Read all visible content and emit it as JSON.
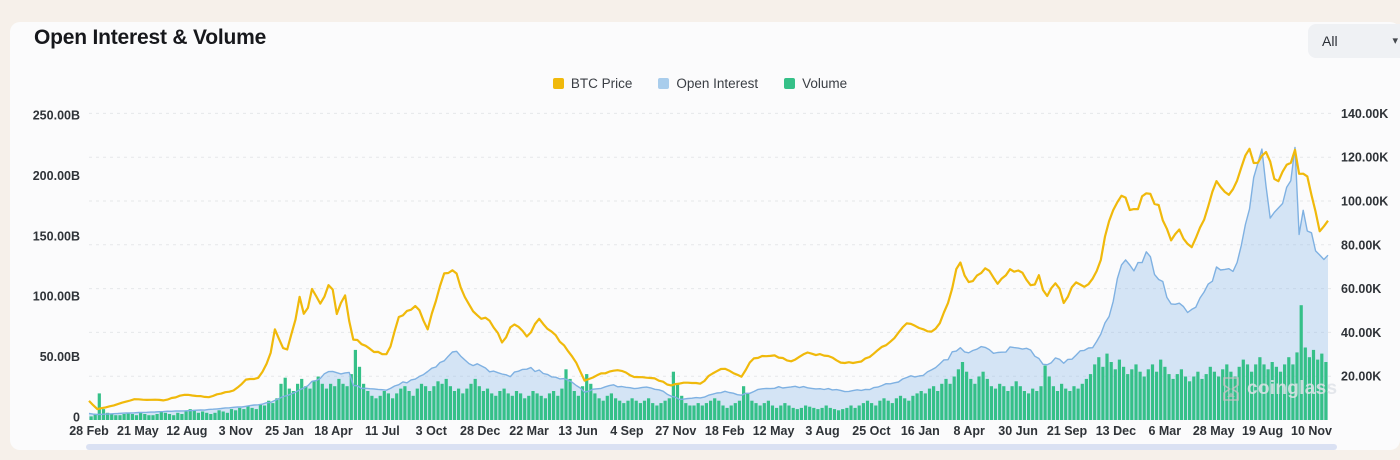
{
  "header": {
    "title": "Open Interest & Volume",
    "range_selector": {
      "value": "All"
    }
  },
  "watermark": {
    "text": "coinglass"
  },
  "chart_data": {
    "type": "mixed",
    "title": "Open Interest & Volume",
    "legend_position": "top-center",
    "grid": "horizontal-dashed",
    "time_span_days": 2100,
    "sample_step_days": 7,
    "x_axis": {
      "tick_labels": [
        "28 Feb",
        "21 May",
        "12 Aug",
        "3 Nov",
        "25 Jan",
        "18 Apr",
        "11 Jul",
        "3 Oct",
        "28 Dec",
        "22 Mar",
        "13 Jun",
        "4 Sep",
        "27 Nov",
        "18 Feb",
        "12 May",
        "3 Aug",
        "25 Oct",
        "16 Jan",
        "8 Apr",
        "30 Jun",
        "21 Sep",
        "13 Dec",
        "6 Mar",
        "28 May",
        "19 Aug",
        "10 Nov"
      ],
      "tick_spacing_days": 83
    },
    "left_axis": {
      "unit": "B",
      "tick_labels": [
        "250.00B",
        "200.00B",
        "150.00B",
        "100.00B",
        "50.00B",
        "0"
      ],
      "tick_values": [
        250,
        200,
        150,
        100,
        50,
        0
      ],
      "range": [
        0,
        260
      ]
    },
    "right_axis": {
      "unit": "K",
      "tick_labels": [
        "140.00K",
        "120.00K",
        "100.00K",
        "80.00K",
        "60.00K",
        "40.00K",
        "20.00K"
      ],
      "tick_values": [
        140,
        120,
        100,
        80,
        60,
        40,
        20
      ],
      "range": [
        0,
        145
      ]
    },
    "series": [
      {
        "name": "BTC Price",
        "type": "line",
        "axis": "right",
        "unit": "K USD",
        "color": "#F0B90B",
        "stroke": "#F0B90B",
        "roughness": 0.018,
        "keypoints": [
          [
            0,
            8.7
          ],
          [
            14,
            4.9
          ],
          [
            45,
            6.9
          ],
          [
            75,
            9.4
          ],
          [
            130,
            9.1
          ],
          [
            163,
            11.8
          ],
          [
            200,
            10.4
          ],
          [
            245,
            13.5
          ],
          [
            266,
            18.4
          ],
          [
            288,
            19.2
          ],
          [
            307,
            29
          ],
          [
            315,
            40.9
          ],
          [
            334,
            30.4
          ],
          [
            352,
            48.6
          ],
          [
            358,
            57.4
          ],
          [
            366,
            45.1
          ],
          [
            380,
            61.2
          ],
          [
            392,
            52.3
          ],
          [
            411,
            63.6
          ],
          [
            420,
            49.1
          ],
          [
            433,
            58.9
          ],
          [
            446,
            36.7
          ],
          [
            460,
            35.6
          ],
          [
            478,
            31.6
          ],
          [
            508,
            29.8
          ],
          [
            522,
            45.6
          ],
          [
            540,
            49.3
          ],
          [
            557,
            52.7
          ],
          [
            573,
            40.7
          ],
          [
            600,
            66
          ],
          [
            621,
            67.5
          ],
          [
            635,
            56.9
          ],
          [
            660,
            46.7
          ],
          [
            673,
            46.2
          ],
          [
            690,
            41.8
          ],
          [
            700,
            35
          ],
          [
            720,
            44.4
          ],
          [
            745,
            37.7
          ],
          [
            760,
            46.8
          ],
          [
            790,
            38.5
          ],
          [
            820,
            29
          ],
          [
            841,
            17.8
          ],
          [
            870,
            21.2
          ],
          [
            900,
            23.3
          ],
          [
            920,
            19.8
          ],
          [
            950,
            19.6
          ],
          [
            985,
            15.9
          ],
          [
            1010,
            17.2
          ],
          [
            1038,
            16.6
          ],
          [
            1055,
            21.1
          ],
          [
            1075,
            23.7
          ],
          [
            1106,
            19.9
          ],
          [
            1125,
            28.3
          ],
          [
            1160,
            29.9
          ],
          [
            1190,
            26.8
          ],
          [
            1219,
            30.6
          ],
          [
            1250,
            29.2
          ],
          [
            1280,
            25.9
          ],
          [
            1310,
            26.7
          ],
          [
            1330,
            29.9
          ],
          [
            1350,
            34.5
          ],
          [
            1365,
            37.8
          ],
          [
            1385,
            43.8
          ],
          [
            1403,
            42.3
          ],
          [
            1425,
            39.5
          ],
          [
            1440,
            43.1
          ],
          [
            1455,
            52
          ],
          [
            1475,
            73.1
          ],
          [
            1490,
            61.9
          ],
          [
            1520,
            70.6
          ],
          [
            1540,
            61.2
          ],
          [
            1560,
            68.3
          ],
          [
            1580,
            69
          ],
          [
            1600,
            60.3
          ],
          [
            1612,
            67.1
          ],
          [
            1620,
            54
          ],
          [
            1640,
            64.1
          ],
          [
            1653,
            52.5
          ],
          [
            1670,
            63.3
          ],
          [
            1690,
            60.8
          ],
          [
            1705,
            67
          ],
          [
            1712,
            69.4
          ],
          [
            1725,
            88
          ],
          [
            1740,
            98
          ],
          [
            1754,
            106.1
          ],
          [
            1768,
            93.5
          ],
          [
            1788,
            102.1
          ],
          [
            1795,
            105
          ],
          [
            1815,
            96.1
          ],
          [
            1835,
            82.1
          ],
          [
            1850,
            87.5
          ],
          [
            1866,
            76.3
          ],
          [
            1880,
            85.1
          ],
          [
            1895,
            94.3
          ],
          [
            1910,
            110.7
          ],
          [
            1930,
            104
          ],
          [
            1945,
            107.8
          ],
          [
            1963,
            123.1
          ],
          [
            1980,
            117.4
          ],
          [
            1994,
            124.3
          ],
          [
            2010,
            109
          ],
          [
            2025,
            112
          ],
          [
            2040,
            120
          ],
          [
            2047,
            125.8
          ],
          [
            2051,
            111
          ],
          [
            2065,
            110.5
          ],
          [
            2075,
            99
          ],
          [
            2085,
            86.5
          ],
          [
            2100,
            90.2
          ]
        ]
      },
      {
        "name": "Open Interest",
        "type": "area",
        "axis": "left",
        "unit": "B USD",
        "color": "#A9CDEC",
        "stroke": "#7FB1E2",
        "fill": "rgba(140,186,232,0.35)",
        "roughness": 0.04,
        "keypoints": [
          [
            0,
            3
          ],
          [
            14,
            2
          ],
          [
            50,
            3
          ],
          [
            100,
            4
          ],
          [
            150,
            5
          ],
          [
            200,
            6
          ],
          [
            250,
            8
          ],
          [
            280,
            10
          ],
          [
            307,
            12
          ],
          [
            320,
            15
          ],
          [
            340,
            18
          ],
          [
            365,
            25
          ],
          [
            390,
            32
          ],
          [
            411,
            40
          ],
          [
            425,
            34
          ],
          [
            440,
            38
          ],
          [
            446,
            26
          ],
          [
            465,
            24
          ],
          [
            490,
            22
          ],
          [
            508,
            22
          ],
          [
            530,
            28
          ],
          [
            560,
            33
          ],
          [
            585,
            40
          ],
          [
            605,
            48
          ],
          [
            621,
            55
          ],
          [
            640,
            47
          ],
          [
            660,
            42
          ],
          [
            673,
            40
          ],
          [
            695,
            36
          ],
          [
            710,
            33
          ],
          [
            730,
            38
          ],
          [
            750,
            40
          ],
          [
            770,
            36
          ],
          [
            800,
            32
          ],
          [
            820,
            28
          ],
          [
            841,
            20
          ],
          [
            865,
            24
          ],
          [
            890,
            26
          ],
          [
            920,
            24
          ],
          [
            950,
            25
          ],
          [
            975,
            22
          ],
          [
            985,
            17
          ],
          [
            1000,
            15
          ],
          [
            1038,
            16
          ],
          [
            1060,
            19
          ],
          [
            1080,
            21
          ],
          [
            1106,
            18
          ],
          [
            1130,
            22
          ],
          [
            1160,
            24
          ],
          [
            1190,
            25
          ],
          [
            1219,
            24
          ],
          [
            1250,
            23
          ],
          [
            1280,
            21
          ],
          [
            1310,
            22
          ],
          [
            1330,
            24
          ],
          [
            1360,
            28
          ],
          [
            1385,
            32
          ],
          [
            1403,
            34
          ],
          [
            1430,
            38
          ],
          [
            1455,
            48
          ],
          [
            1475,
            58
          ],
          [
            1490,
            52
          ],
          [
            1515,
            58
          ],
          [
            1540,
            52
          ],
          [
            1565,
            58
          ],
          [
            1590,
            55
          ],
          [
            1610,
            50
          ],
          [
            1620,
            42
          ],
          [
            1640,
            48
          ],
          [
            1653,
            44
          ],
          [
            1675,
            52
          ],
          [
            1695,
            56
          ],
          [
            1712,
            62
          ],
          [
            1725,
            80
          ],
          [
            1740,
            105
          ],
          [
            1754,
            140
          ],
          [
            1765,
            120
          ],
          [
            1780,
            128
          ],
          [
            1795,
            135
          ],
          [
            1815,
            112
          ],
          [
            1835,
            96
          ],
          [
            1855,
            90
          ],
          [
            1866,
            87
          ],
          [
            1885,
            100
          ],
          [
            1900,
            112
          ],
          [
            1915,
            125
          ],
          [
            1930,
            118
          ],
          [
            1945,
            130
          ],
          [
            1955,
            142
          ],
          [
            1963,
            162
          ],
          [
            1970,
            185
          ],
          [
            1980,
            205
          ],
          [
            1988,
            225
          ],
          [
            1993,
            208
          ],
          [
            2000,
            172
          ],
          [
            2010,
            162
          ],
          [
            2020,
            176
          ],
          [
            2030,
            190
          ],
          [
            2040,
            208
          ],
          [
            2047,
            234
          ],
          [
            2051,
            152
          ],
          [
            2056,
            170
          ],
          [
            2062,
            162
          ],
          [
            2070,
            152
          ],
          [
            2080,
            140
          ],
          [
            2100,
            130
          ]
        ]
      },
      {
        "name": "Volume",
        "type": "bar",
        "axis": "left",
        "unit": "B USD",
        "color": "#35C088",
        "weekly_values": [
          3,
          5,
          22,
          9,
          6,
          5,
          4,
          4,
          5,
          6,
          5,
          4,
          6,
          5,
          4,
          4,
          5,
          7,
          6,
          5,
          4,
          6,
          5,
          7,
          9,
          8,
          6,
          7,
          6,
          5,
          6,
          8,
          7,
          6,
          9,
          8,
          10,
          9,
          12,
          10,
          9,
          13,
          12,
          16,
          14,
          18,
          30,
          35,
          26,
          24,
          30,
          34,
          28,
          26,
          32,
          36,
          30,
          26,
          30,
          28,
          34,
          30,
          28,
          38,
          58,
          44,
          30,
          24,
          20,
          18,
          20,
          24,
          22,
          18,
          22,
          26,
          28,
          24,
          20,
          26,
          30,
          28,
          24,
          28,
          32,
          30,
          34,
          28,
          24,
          26,
          22,
          26,
          30,
          34,
          28,
          24,
          26,
          22,
          20,
          24,
          26,
          22,
          20,
          24,
          22,
          18,
          20,
          24,
          22,
          20,
          18,
          22,
          24,
          20,
          26,
          42,
          34,
          24,
          20,
          28,
          38,
          30,
          22,
          18,
          16,
          20,
          22,
          18,
          16,
          14,
          16,
          18,
          16,
          14,
          16,
          18,
          14,
          12,
          14,
          16,
          18,
          40,
          30,
          20,
          14,
          12,
          12,
          14,
          12,
          14,
          16,
          18,
          16,
          12,
          10,
          12,
          14,
          16,
          28,
          22,
          16,
          14,
          12,
          14,
          16,
          12,
          10,
          12,
          14,
          12,
          10,
          9,
          10,
          12,
          11,
          10,
          9,
          10,
          12,
          10,
          9,
          8,
          9,
          10,
          12,
          10,
          12,
          14,
          16,
          14,
          12,
          16,
          18,
          16,
          14,
          18,
          20,
          18,
          16,
          20,
          22,
          24,
          22,
          26,
          28,
          24,
          30,
          34,
          30,
          36,
          42,
          48,
          40,
          34,
          30,
          36,
          40,
          34,
          28,
          26,
          30,
          28,
          24,
          28,
          32,
          28,
          24,
          22,
          26,
          24,
          28,
          45,
          36,
          28,
          24,
          30,
          26,
          24,
          28,
          26,
          30,
          34,
          38,
          46,
          52,
          44,
          55,
          48,
          42,
          50,
          44,
          38,
          42,
          46,
          40,
          36,
          42,
          46,
          40,
          50,
          44,
          38,
          34,
          38,
          42,
          36,
          32,
          36,
          40,
          34,
          38,
          44,
          40,
          36,
          42,
          46,
          40,
          36,
          44,
          50,
          46,
          40,
          46,
          52,
          46,
          42,
          48,
          44,
          40,
          46,
          52,
          46,
          56,
          95,
          60,
          52,
          58,
          50,
          55,
          48
        ]
      }
    ]
  }
}
